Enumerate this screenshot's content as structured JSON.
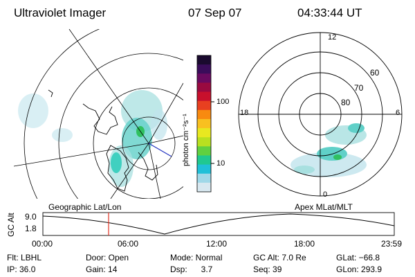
{
  "header": {
    "instrument": "Ultraviolet Imager",
    "date": "07 Sep 07",
    "time": "04:33:44 UT"
  },
  "colorbar": {
    "unit_label": "photon cm⁻²s⁻¹",
    "ticks": [
      "100",
      "10"
    ],
    "colors": [
      "#1a0a2e",
      "#3a0c5a",
      "#6a0a60",
      "#9a0a40",
      "#c8102c",
      "#e84020",
      "#f88a10",
      "#f8c020",
      "#e8e820",
      "#b8e020",
      "#60d040",
      "#20c890",
      "#20c0d8",
      "#a0d8e8",
      "#d8e8f0"
    ]
  },
  "polar_plot": {
    "mlt_labels": [
      "12",
      "18",
      "6",
      "0"
    ],
    "lat_labels": [
      "60",
      "70",
      "80"
    ]
  },
  "map_labels": {
    "left": "Geographic Lat/Lon",
    "right": "Apex  MLat/MLT"
  },
  "altitude_panel": {
    "ylabel": "GC Alt",
    "yticks": [
      "9.0",
      "1.8"
    ],
    "xticks": [
      "00:00",
      "06:00",
      "12:00",
      "18:00",
      "23:59"
    ]
  },
  "footer": {
    "flt": "Flt: LBHL",
    "ip": "IP: 36.0",
    "door": "Door: Open",
    "gain": "Gain: 14",
    "mode": "Mode: Normal",
    "dsp": "Dsp:      3.7",
    "gcalt": "GC Alt: 7.0 Re",
    "seq": "Seq: 39",
    "glat": "GLat: −66.8",
    "glon": "GLon: 293.9"
  },
  "accent_colors": {
    "cursor": "#e03020",
    "aurora": "#40d0c0",
    "aurora_light": "#a8e0e0",
    "aurora_hot": "#30c060"
  }
}
